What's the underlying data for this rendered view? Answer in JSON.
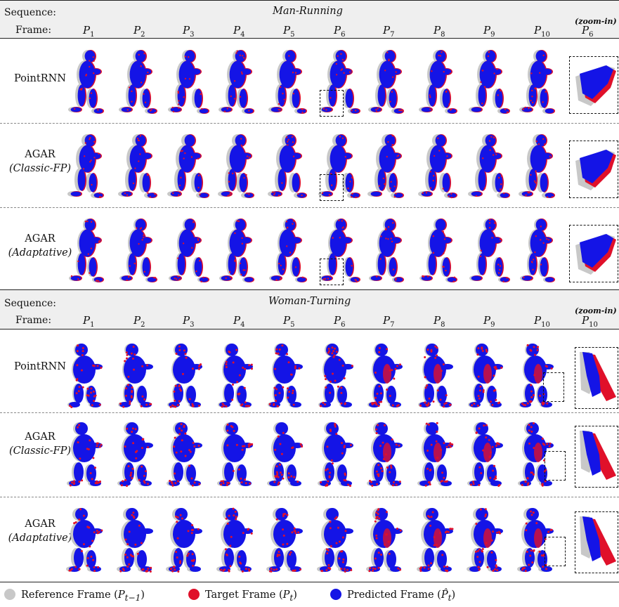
{
  "labels": {
    "sequence": "Sequence:",
    "frame": "Frame:",
    "zoom_in": "(zoom-in)"
  },
  "frame_symbol": "P",
  "frames": [
    "1",
    "2",
    "3",
    "4",
    "5",
    "6",
    "7",
    "8",
    "9",
    "10"
  ],
  "blocks": [
    {
      "sequence_name": "Man-Running",
      "zoom_frame": "6",
      "rows": [
        {
          "title": "PointRNN",
          "subtitle": ""
        },
        {
          "title": "AGAR",
          "subtitle": "(Classic-FP)"
        },
        {
          "title": "AGAR",
          "subtitle": "(Adaptative)"
        }
      ]
    },
    {
      "sequence_name": "Woman-Turning",
      "zoom_frame": "10",
      "rows": [
        {
          "title": "PointRNN",
          "subtitle": ""
        },
        {
          "title": "AGAR",
          "subtitle": "(Classic-FP)"
        },
        {
          "title": "AGAR",
          "subtitle": "(Adaptative)"
        }
      ]
    }
  ],
  "legend": [
    {
      "label": "Reference Frame (",
      "symbol": "P",
      "sub": "t−1",
      "close": ")",
      "color": "#c8c8c8"
    },
    {
      "label": "Target Frame (",
      "symbol": "P",
      "sub": "t",
      "close": ")",
      "color": "#e0102a"
    },
    {
      "label": "Predicted Frame (",
      "symbol": "P̂",
      "sub": "t",
      "close": ")",
      "color": "#1414e6"
    }
  ],
  "colors": {
    "reference": "#c8c8c8",
    "target": "#e0102a",
    "predicted": "#1414e6"
  }
}
